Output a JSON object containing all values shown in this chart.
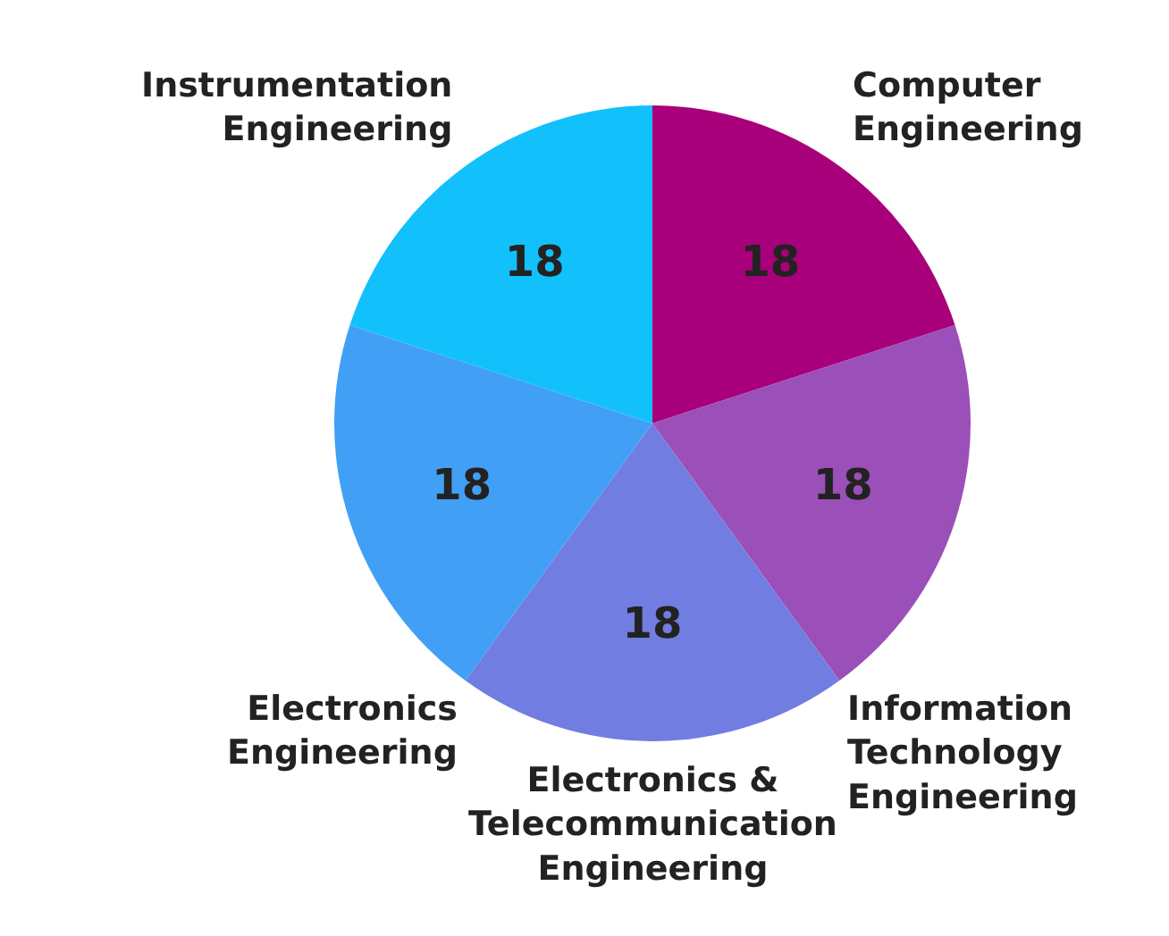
{
  "chart_data": {
    "type": "pie",
    "categories": [
      "Computer Engineering",
      "Information Technology Engineering",
      "Electronics & Telecommunication Engineering",
      "Electronics Engineering",
      "Instrumentation Engineering"
    ],
    "values": [
      18,
      18,
      18,
      18,
      18
    ],
    "colors": [
      "#a8007a",
      "#9b4fb8",
      "#717de0",
      "#41a0f6",
      "#12c0fc"
    ],
    "data_labels": true,
    "legend": false
  }
}
